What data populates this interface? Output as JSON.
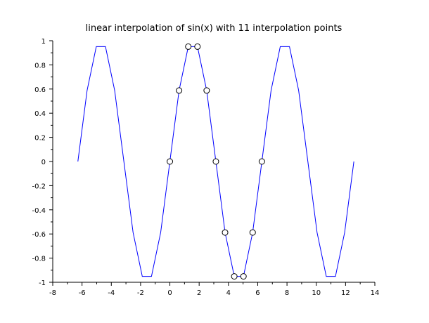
{
  "chart_data": {
    "type": "line",
    "title": "linear interpolation of sin(x) with 11 interpolation points",
    "xlabel": "",
    "ylabel": "",
    "xlim": [
      -8,
      14
    ],
    "ylim": [
      -1,
      1
    ],
    "x_major_ticks": [
      -8,
      -6,
      -4,
      -2,
      0,
      2,
      4,
      6,
      8,
      10,
      12,
      14
    ],
    "x_tick_labels": [
      "-8",
      "-6",
      "-4",
      "-2",
      "0",
      "2",
      "4",
      "6",
      "8",
      "10",
      "12",
      "14"
    ],
    "y_major_ticks": [
      -1,
      -0.8,
      -0.6,
      -0.4,
      -0.2,
      0,
      0.2,
      0.4,
      0.6,
      0.8,
      1
    ],
    "y_tick_labels": [
      "-1",
      "-0.8",
      "-0.6",
      "-0.4",
      "-0.2",
      "0",
      "0.2",
      "0.4",
      "0.6",
      "0.8",
      "1"
    ],
    "grid": false,
    "line_color": "#0000ff",
    "marker_color": "#000000",
    "series": [
      {
        "style": "line",
        "x_start": -6.2832,
        "x_end": 12.5664,
        "period": 6.2832,
        "x": [
          0,
          0.6283,
          1.2566,
          1.885,
          2.5133,
          3.1416,
          3.7699,
          4.3982,
          5.0265,
          5.6549,
          6.2832
        ],
        "y": [
          0,
          0.5878,
          0.9511,
          0.9511,
          0.5878,
          0,
          -0.5878,
          -0.9511,
          -0.9511,
          -0.5878,
          0
        ]
      },
      {
        "style": "markers",
        "x": [
          0,
          0.6283,
          1.2566,
          1.885,
          2.5133,
          3.1416,
          3.7699,
          4.3982,
          5.0265,
          5.6549,
          6.2832
        ],
        "y": [
          0,
          0.5878,
          0.9511,
          0.9511,
          0.5878,
          0,
          -0.5878,
          -0.9511,
          -0.9511,
          -0.5878,
          0
        ]
      }
    ]
  }
}
